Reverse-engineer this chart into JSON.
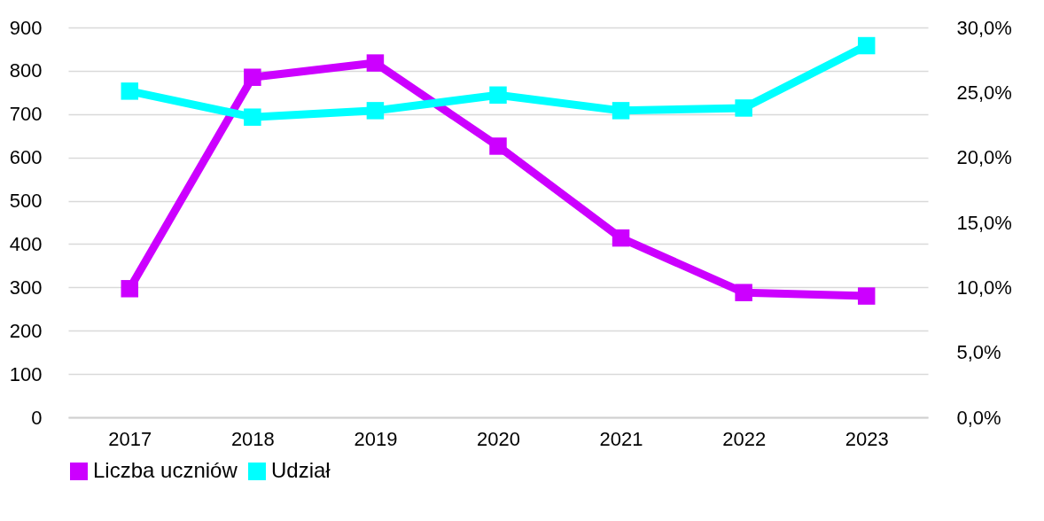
{
  "chart_data": {
    "type": "line",
    "categories": [
      "2017",
      "2018",
      "2019",
      "2020",
      "2021",
      "2022",
      "2023"
    ],
    "series": [
      {
        "name": "Liczba uczniów",
        "color": "#cc00ff",
        "values": [
          297,
          785,
          818,
          626,
          414,
          288,
          280
        ]
      },
      {
        "name": "Udział",
        "color": "#00ffff",
        "axis": "y2",
        "values": [
          25.1,
          23.1,
          23.6,
          24.8,
          23.6,
          23.8,
          28.6
        ]
      }
    ],
    "ylim": [
      0,
      900
    ],
    "yticks": [
      0,
      100,
      200,
      300,
      400,
      500,
      600,
      700,
      800,
      900
    ],
    "y2lim": [
      0,
      30
    ],
    "y2ticks": [
      {
        "value": 0,
        "label": "0,0%"
      },
      {
        "value": 5,
        "label": "5,0%"
      },
      {
        "value": 10,
        "label": "10,0%"
      },
      {
        "value": 15,
        "label": "15,0%"
      },
      {
        "value": 20,
        "label": "20,0%"
      },
      {
        "value": 25,
        "label": "25,0%"
      },
      {
        "value": 30,
        "label": "30,0%"
      }
    ],
    "grid": "y",
    "legend": "bottom",
    "marker": "square",
    "line_style": "solid"
  }
}
